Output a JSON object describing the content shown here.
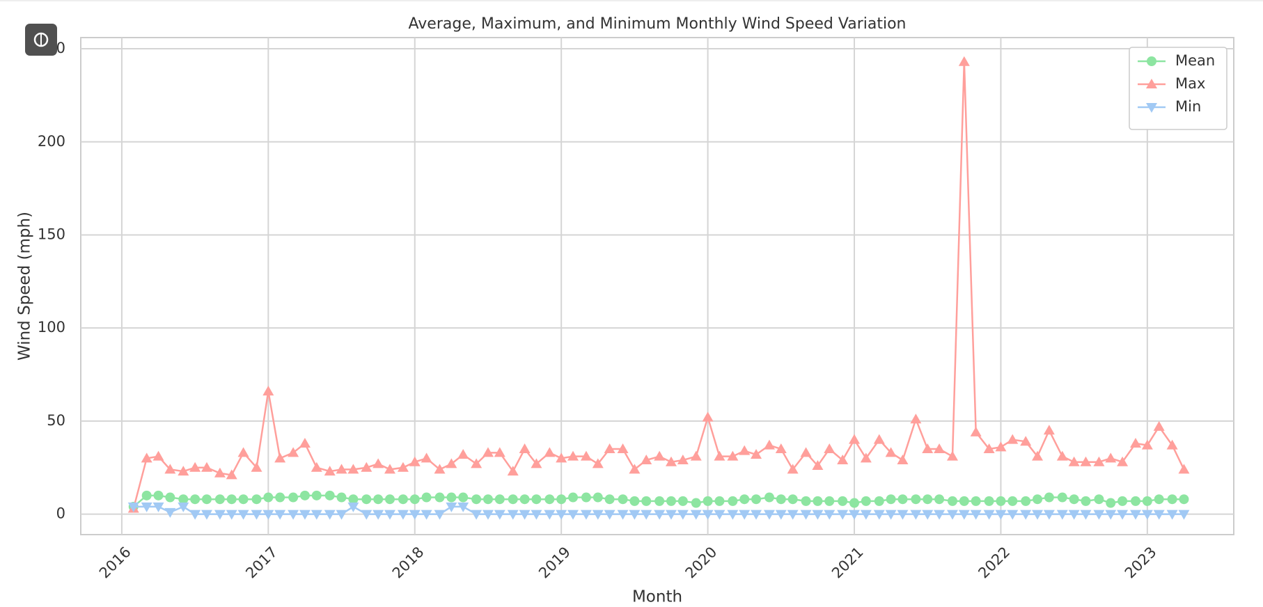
{
  "chart_data": {
    "type": "line",
    "title": "Average, Maximum, and Minimum Monthly Wind Speed Variation",
    "x_label": "Month",
    "y_label": "Wind Speed (mph)",
    "x": [
      2016.08,
      2016.17,
      2016.25,
      2016.33,
      2016.42,
      2016.5,
      2016.58,
      2016.67,
      2016.75,
      2016.83,
      2016.92,
      2017,
      2017.08,
      2017.17,
      2017.25,
      2017.33,
      2017.42,
      2017.5,
      2017.58,
      2017.67,
      2017.75,
      2017.83,
      2017.92,
      2018,
      2018.08,
      2018.17,
      2018.25,
      2018.33,
      2018.42,
      2018.5,
      2018.58,
      2018.67,
      2018.75,
      2018.83,
      2018.92,
      2019,
      2019.08,
      2019.17,
      2019.25,
      2019.33,
      2019.42,
      2019.5,
      2019.58,
      2019.67,
      2019.75,
      2019.83,
      2019.92,
      2020,
      2020.08,
      2020.17,
      2020.25,
      2020.33,
      2020.42,
      2020.5,
      2020.58,
      2020.67,
      2020.75,
      2020.83,
      2020.92,
      2021,
      2021.08,
      2021.17,
      2021.25,
      2021.33,
      2021.42,
      2021.5,
      2021.58,
      2021.67,
      2021.75,
      2021.83,
      2021.92,
      2022,
      2022.08,
      2022.17,
      2022.25,
      2022.33,
      2022.42,
      2022.5,
      2022.58,
      2022.67,
      2022.75,
      2022.83,
      2022.92,
      2023,
      2023.08,
      2023.17,
      2023.25
    ],
    "series": [
      {
        "name": "Mean",
        "color": "#8de5a1",
        "marker": "circle",
        "values": [
          4,
          10,
          10,
          9,
          8,
          8,
          8,
          8,
          8,
          8,
          8,
          9,
          9,
          9,
          10,
          10,
          10,
          9,
          8,
          8,
          8,
          8,
          8,
          8,
          9,
          9,
          9,
          9,
          8,
          8,
          8,
          8,
          8,
          8,
          8,
          8,
          9,
          9,
          9,
          8,
          8,
          7,
          7,
          7,
          7,
          7,
          6,
          7,
          7,
          7,
          8,
          8,
          9,
          8,
          8,
          7,
          7,
          7,
          7,
          6,
          7,
          7,
          8,
          8,
          8,
          8,
          8,
          7,
          7,
          7,
          7,
          7,
          7,
          7,
          8,
          9,
          9,
          8,
          7,
          8,
          6,
          7,
          7,
          7,
          8,
          8,
          8
        ]
      },
      {
        "name": "Max",
        "color": "#ff9f9b",
        "marker": "triangle-up",
        "values": [
          3,
          30,
          31,
          24,
          23,
          25,
          25,
          22,
          21,
          33,
          25,
          66,
          30,
          33,
          38,
          25,
          23,
          24,
          24,
          25,
          27,
          24,
          25,
          28,
          30,
          24,
          27,
          32,
          27,
          33,
          33,
          23,
          35,
          27,
          33,
          30,
          31,
          31,
          27,
          35,
          35,
          24,
          29,
          31,
          28,
          29,
          31,
          52,
          31,
          31,
          34,
          32,
          37,
          35,
          24,
          33,
          26,
          35,
          29,
          40,
          30,
          40,
          33,
          29,
          51,
          35,
          35,
          31,
          243,
          44,
          35,
          36,
          40,
          39,
          31,
          45,
          31,
          28,
          28,
          28,
          30,
          28,
          38,
          37,
          47,
          37,
          24
        ]
      },
      {
        "name": "Min",
        "color": "#a1c9f4",
        "marker": "triangle-down",
        "values": [
          4,
          4,
          4,
          1,
          4,
          0,
          0,
          0,
          0,
          0,
          0,
          0,
          0,
          0,
          0,
          0,
          0,
          0,
          4,
          0,
          0,
          0,
          0,
          0,
          0,
          0,
          4,
          4,
          0,
          0,
          0,
          0,
          0,
          0,
          0,
          0,
          0,
          0,
          0,
          0,
          0,
          0,
          0,
          0,
          0,
          0,
          0,
          0,
          0,
          0,
          0,
          0,
          0,
          0,
          0,
          0,
          0,
          0,
          0,
          0,
          0,
          0,
          0,
          0,
          0,
          0,
          0,
          0,
          0,
          0,
          0,
          0,
          0,
          0,
          0,
          0,
          0,
          0,
          0,
          0,
          0,
          0,
          0,
          0,
          0,
          0,
          0
        ]
      }
    ],
    "xlim": [
      2015.72,
      2023.59
    ],
    "xticks": [
      2016,
      2017,
      2018,
      2019,
      2020,
      2021,
      2022,
      2023
    ],
    "ylim": [
      -11,
      256
    ],
    "yticks": [
      0,
      50,
      100,
      150,
      200,
      250
    ],
    "grid": true,
    "legend": "upper right"
  }
}
